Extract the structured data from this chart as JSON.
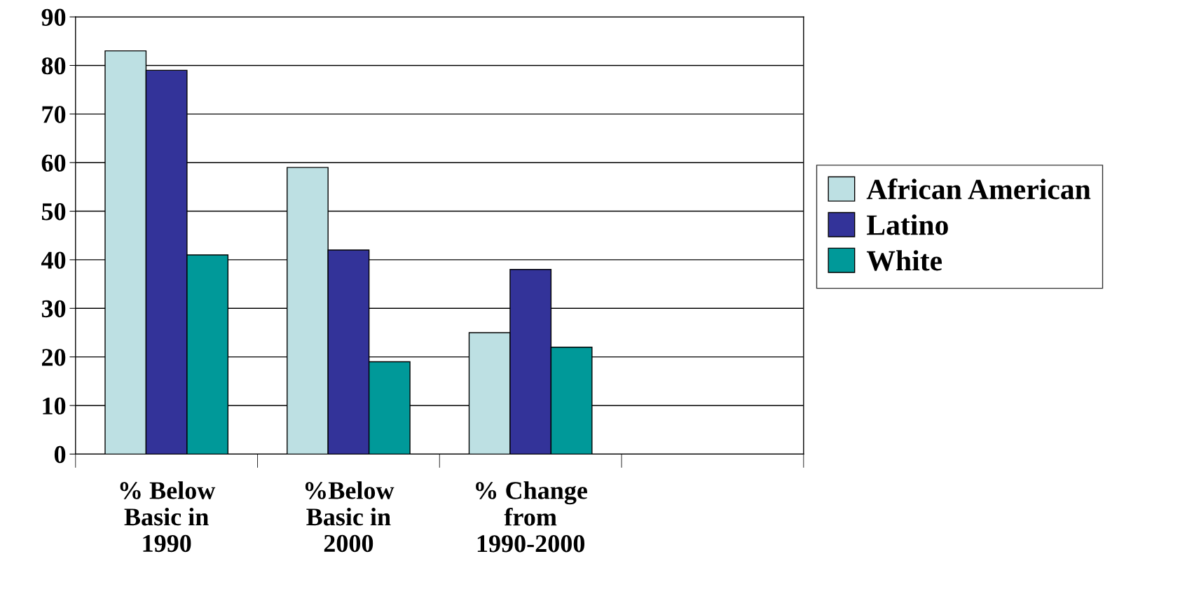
{
  "chart_data": {
    "type": "bar",
    "categories": [
      "% Below\nBasic in\n1990",
      "%Below\nBasic in\n2000",
      "% Change\nfrom\n1990-2000",
      null
    ],
    "series": [
      {
        "name": "African American",
        "color": "#bde0e3",
        "values": [
          83,
          59,
          25,
          null
        ]
      },
      {
        "name": "Latino",
        "color": "#333399",
        "values": [
          79,
          42,
          38,
          null
        ]
      },
      {
        "name": "White",
        "color": "#009999",
        "values": [
          41,
          19,
          22,
          null
        ]
      }
    ],
    "ylim": [
      0,
      90
    ],
    "yticks": [
      0,
      10,
      20,
      30,
      40,
      50,
      60,
      70,
      80,
      90
    ],
    "grid": "y",
    "legend": "right"
  }
}
